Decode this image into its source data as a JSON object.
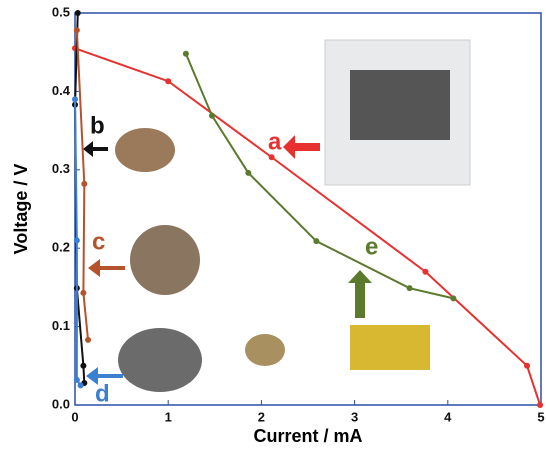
{
  "chart_data": {
    "type": "line",
    "x_label": "Current / mA",
    "y_label": "Voltage / V",
    "xlim": [
      0,
      5
    ],
    "ylim": [
      0,
      0.5
    ],
    "xticks": [
      0,
      1,
      2,
      3,
      4,
      5
    ],
    "yticks": [
      {
        "value": 0,
        "label": "0.0"
      },
      0.1,
      0.2,
      0.3,
      0.4,
      0.5
    ],
    "series": [
      {
        "name": "a",
        "color": "#e8312f",
        "x": [
          0,
          1.0,
          2.11,
          3.76,
          4.85,
          4.99
        ],
        "values": [
          0.455,
          0.413,
          0.316,
          0.17,
          0.05,
          0.0
        ]
      },
      {
        "name": "e",
        "color": "#5b7a2e",
        "x": [
          1.19,
          1.47,
          1.86,
          2.59,
          3.59,
          4.06
        ],
        "values": [
          0.448,
          0.369,
          0.296,
          0.209,
          0.149,
          0.136
        ]
      },
      {
        "name": "b",
        "color": "#111111",
        "x": [
          0.03,
          0.0,
          0.02,
          0.09,
          0.1
        ],
        "values": [
          0.5,
          0.383,
          0.149,
          0.05,
          0.028
        ]
      },
      {
        "name": "c",
        "color": "#b5532a",
        "x": [
          0.02,
          0.1,
          0.09,
          0.14
        ],
        "values": [
          0.478,
          0.282,
          0.143,
          0.083
        ]
      },
      {
        "name": "d",
        "color": "#3b7fd0",
        "x": [
          0.0,
          0.02,
          0.02,
          0.06
        ],
        "values": [
          0.39,
          0.21,
          0.032,
          0.025
        ]
      }
    ]
  }
}
